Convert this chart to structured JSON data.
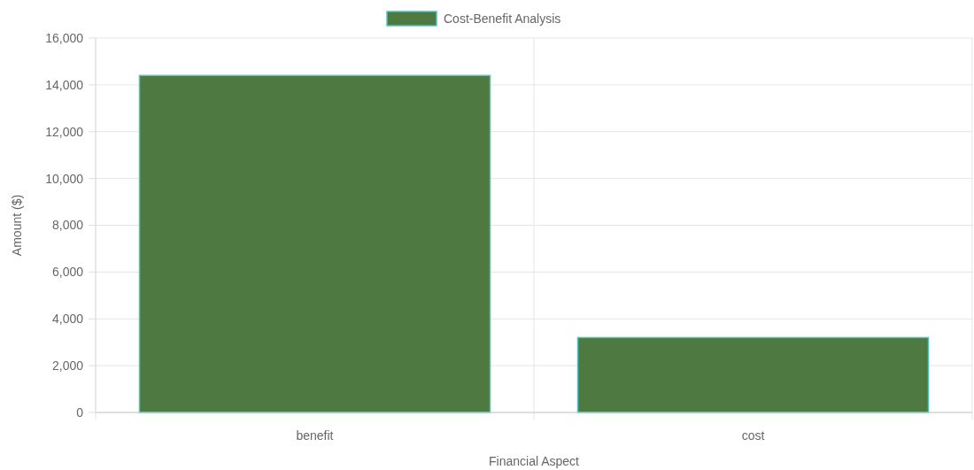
{
  "chart_data": {
    "type": "bar",
    "xlabel": "Financial Aspect",
    "ylabel": "Amount ($)",
    "categories": [
      "benefit",
      "cost"
    ],
    "series": [
      {
        "name": "Cost-Benefit Analysis",
        "color": "#4e7a42",
        "values": [
          14400,
          3200
        ]
      }
    ],
    "ylim": [
      0,
      16000
    ],
    "yticks": [
      {
        "value": 0,
        "label": "0"
      },
      {
        "value": 2000,
        "label": "2,000"
      },
      {
        "value": 4000,
        "label": "4,000"
      },
      {
        "value": 6000,
        "label": "6,000"
      },
      {
        "value": 8000,
        "label": "8,000"
      },
      {
        "value": 10000,
        "label": "10,000"
      },
      {
        "value": 12000,
        "label": "12,000"
      },
      {
        "value": 14000,
        "label": "14,000"
      },
      {
        "value": 16000,
        "label": "16,000"
      }
    ],
    "grid": true,
    "legend": "top"
  }
}
